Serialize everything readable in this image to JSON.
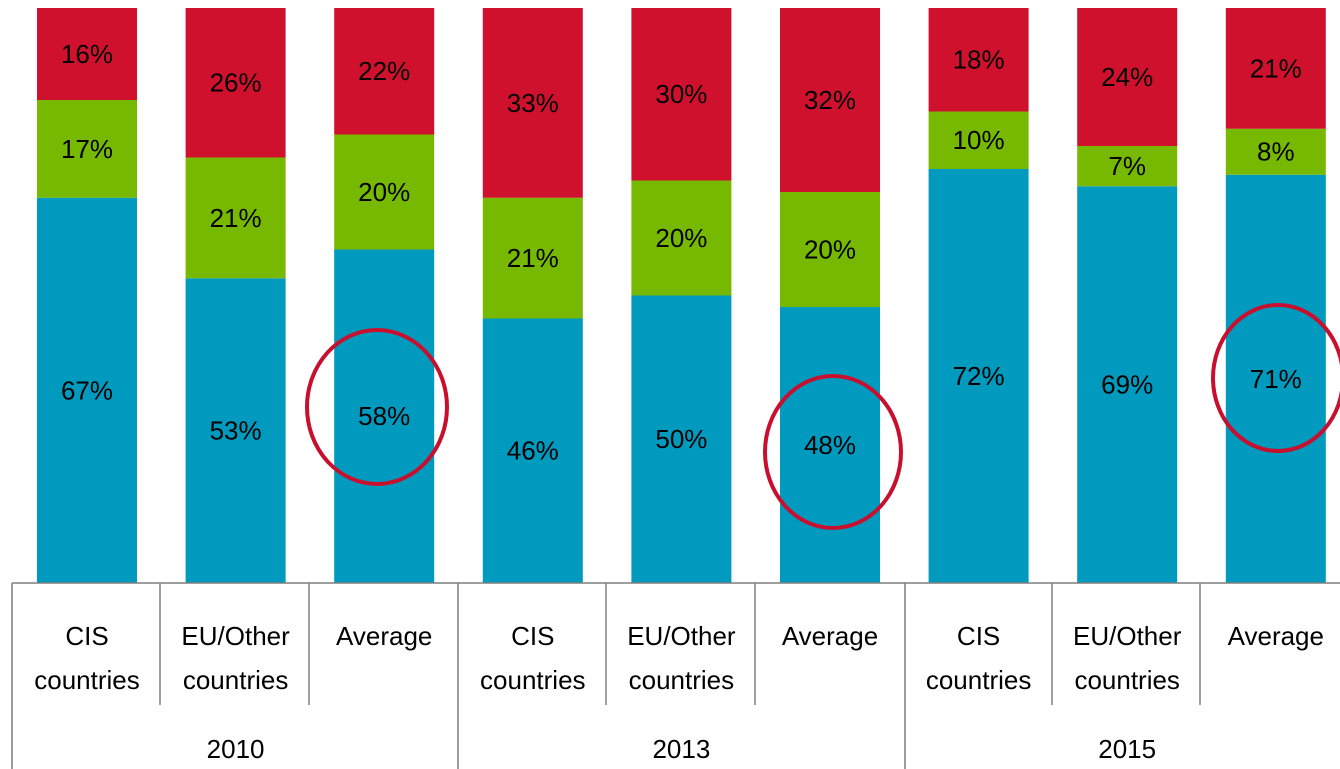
{
  "chart_data": {
    "type": "stacked_bar",
    "categories": [
      "CIS countries",
      "EU/Other countries",
      "Average",
      "CIS countries",
      "EU/Other countries",
      "Average",
      "CIS countries",
      "EU/Other countries",
      "Average"
    ],
    "groups": [
      "2010",
      "2013",
      "2015"
    ],
    "ylim": [
      0,
      100
    ],
    "series": [
      {
        "color": "#009abf",
        "values": [
          67,
          53,
          58,
          46,
          50,
          48,
          72,
          69,
          71
        ],
        "value_labels": [
          "67%",
          "53%",
          "58%",
          "46%",
          "50%",
          "48%",
          "72%",
          "69%",
          "71%"
        ]
      },
      {
        "color": "#76b900",
        "values": [
          17,
          21,
          20,
          21,
          20,
          20,
          10,
          7,
          8
        ],
        "value_labels": [
          "17%",
          "21%",
          "20%",
          "21%",
          "20%",
          "20%",
          "10%",
          "7%",
          "8%"
        ]
      },
      {
        "color": "#d0112e",
        "values": [
          16,
          26,
          22,
          33,
          30,
          32,
          18,
          24,
          21
        ],
        "value_labels": [
          "16%",
          "26%",
          "22%",
          "33%",
          "30%",
          "32%",
          "18%",
          "24%",
          "21%"
        ]
      }
    ]
  }
}
